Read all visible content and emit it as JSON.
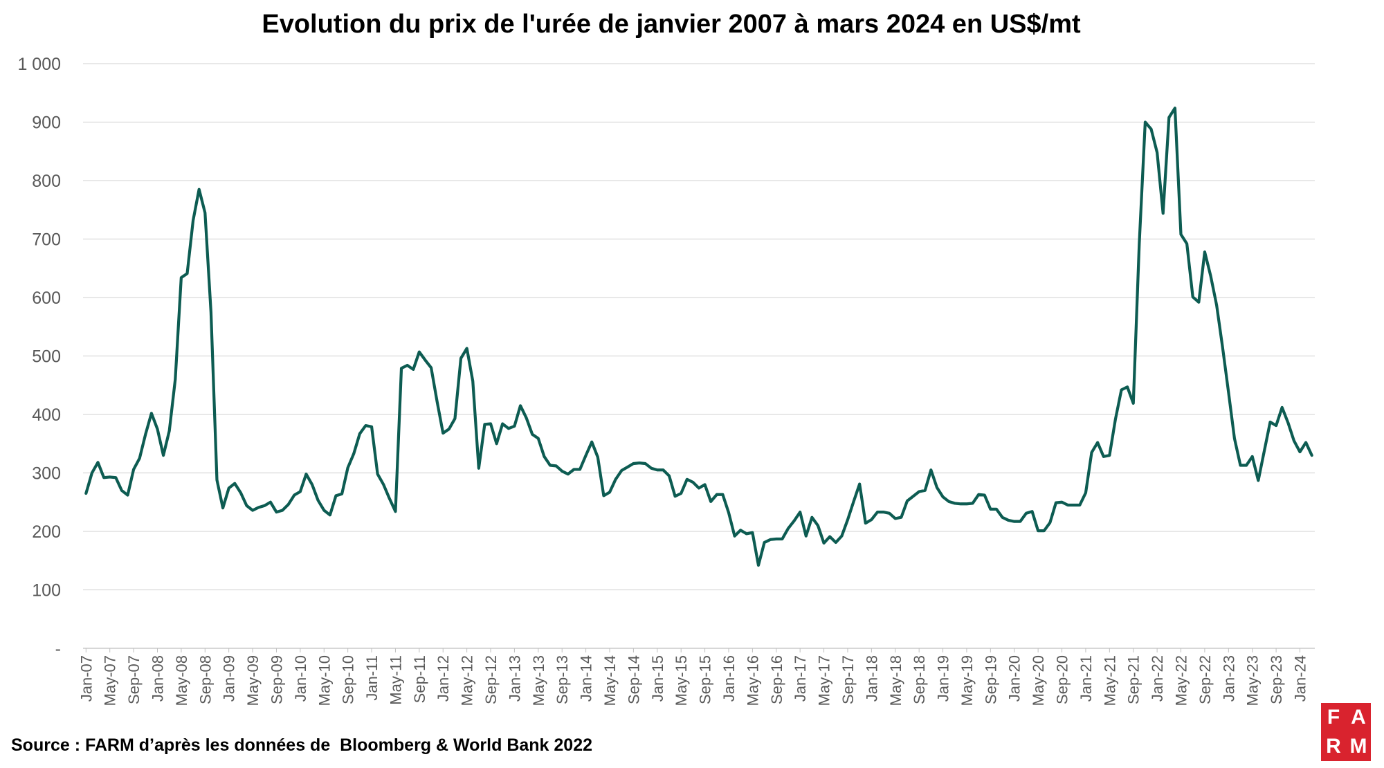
{
  "title": "Evolution du prix de l'urée de janvier 2007 à mars 2024 en US$/mt",
  "source": "Source : FARM d’après les données de  Bloomberg & World Bank 2022",
  "logo": {
    "letters": [
      "F",
      "A",
      "R",
      "M"
    ],
    "color": "#d9232e"
  },
  "colors": {
    "line": "#0d5c52",
    "grid": "#d9d9d9",
    "axis_text": "#595959"
  },
  "chart_data": {
    "type": "line",
    "title": "Evolution du prix de l'urée de janvier 2007 à mars 2024 en US$/mt",
    "xlabel": "",
    "ylabel": "",
    "ylim": [
      0,
      1000
    ],
    "y_ticks": [
      {
        "value": 0,
        "label": "-"
      },
      {
        "value": 100,
        "label": "100"
      },
      {
        "value": 200,
        "label": "200"
      },
      {
        "value": 300,
        "label": "300"
      },
      {
        "value": 400,
        "label": "400"
      },
      {
        "value": 500,
        "label": "500"
      },
      {
        "value": 600,
        "label": "600"
      },
      {
        "value": 700,
        "label": "700"
      },
      {
        "value": 800,
        "label": "800"
      },
      {
        "value": 900,
        "label": "900"
      },
      {
        "value": 1000,
        "label": "1 000"
      }
    ],
    "x_start": "Jan-07",
    "x_end": "Mar-24",
    "x_tick_every_months": 4,
    "x_tick_labels": [
      "Jan-07",
      "May-07",
      "Sep-07",
      "Jan-08",
      "May-08",
      "Sep-08",
      "Jan-09",
      "May-09",
      "Sep-09",
      "Jan-10",
      "May-10",
      "Sep-10",
      "Jan-11",
      "May-11",
      "Sep-11",
      "Jan-12",
      "May-12",
      "Sep-12",
      "Jan-13",
      "May-13",
      "Sep-13",
      "Jan-14",
      "May-14",
      "Sep-14",
      "Jan-15",
      "May-15",
      "Sep-15",
      "Jan-16",
      "May-16",
      "Sep-16",
      "Jan-17",
      "May-17",
      "Sep-17",
      "Jan-18",
      "May-18",
      "Sep-18",
      "Jan-19",
      "May-19",
      "Sep-19",
      "Jan-20",
      "May-20",
      "Sep-20",
      "Jan-21",
      "May-21",
      "Sep-21",
      "Jan-22",
      "May-22",
      "Sep-22",
      "Jan-23",
      "May-23",
      "Sep-23",
      "Jan-24"
    ],
    "grid": true,
    "legend": "none",
    "series": [
      {
        "values": [
          265,
          300,
          318,
          292,
          293,
          292,
          270,
          262,
          306,
          325,
          366,
          402,
          375,
          330,
          372,
          460,
          634,
          641,
          732,
          785,
          745,
          575,
          288,
          240,
          274,
          282,
          266,
          244,
          236,
          241,
          244,
          250,
          233,
          236,
          246,
          262,
          268,
          298,
          280,
          253,
          236,
          228,
          261,
          264,
          309,
          333,
          367,
          381,
          379,
          298,
          280,
          256,
          234,
          479,
          484,
          477,
          507,
          493,
          480,
          422,
          368,
          375,
          393,
          496,
          513,
          457,
          308,
          383,
          384,
          350,
          384,
          376,
          380,
          415,
          394,
          366,
          359,
          328,
          313,
          312,
          303,
          298,
          306,
          306,
          330,
          353,
          327,
          261,
          267,
          289,
          304,
          310,
          316,
          317,
          316,
          308,
          305,
          305,
          295,
          260,
          265,
          289,
          284,
          274,
          280,
          251,
          263,
          263,
          232,
          192,
          202,
          196,
          198,
          142,
          181,
          186,
          187,
          187,
          205,
          218,
          233,
          192,
          224,
          210,
          180,
          191,
          181,
          192,
          220,
          251,
          281,
          214,
          220,
          233,
          233,
          231,
          222,
          224,
          252,
          260,
          268,
          270,
          305,
          275,
          259,
          251,
          248,
          247,
          247,
          248,
          263,
          262,
          238,
          238,
          224,
          219,
          217,
          217,
          231,
          234,
          201,
          201,
          215,
          249,
          250,
          245,
          245,
          245,
          266,
          335,
          352,
          328,
          330,
          392,
          442,
          447,
          419,
          692,
          900,
          888,
          848,
          744,
          908,
          924,
          708,
          692,
          601,
          592,
          678,
          637,
          587,
          515,
          438,
          359,
          313,
          313,
          328,
          287,
          337,
          387,
          381,
          412,
          386,
          355,
          336,
          352,
          330
        ]
      }
    ]
  }
}
